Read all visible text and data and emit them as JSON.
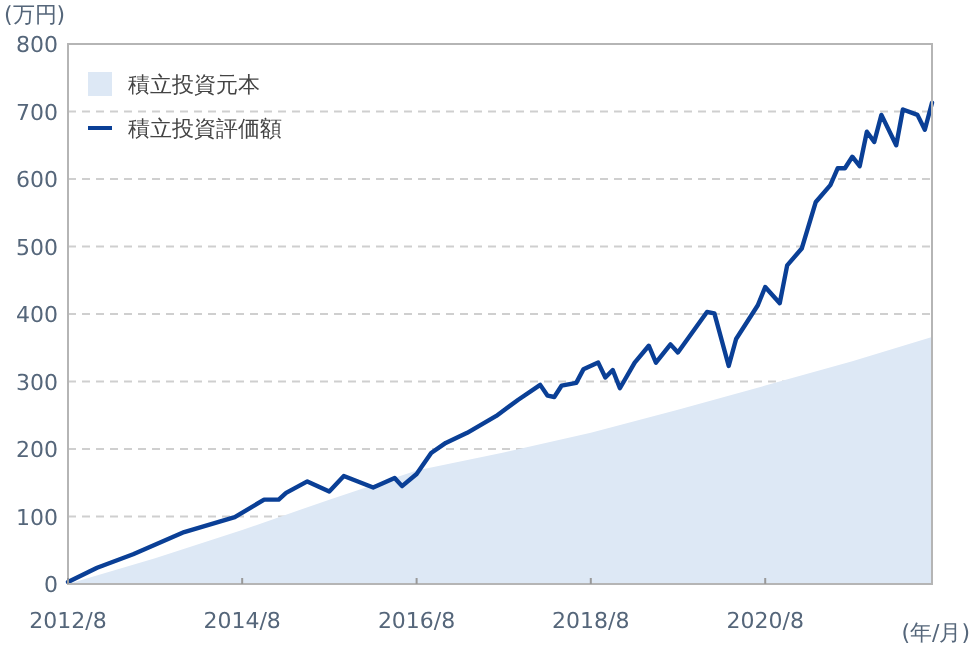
{
  "chart_data": {
    "type": "line",
    "ylabel": "(万円)",
    "xlabel": "(年/月)",
    "xlim": [
      "2012-08",
      "2022-07"
    ],
    "xticks": [
      {
        "value": "2012-08",
        "label": "2012/8"
      },
      {
        "value": "2014-08",
        "label": "2014/8"
      },
      {
        "value": "2016-08",
        "label": "2016/8"
      },
      {
        "value": "2018-08",
        "label": "2018/8"
      },
      {
        "value": "2020-08",
        "label": "2020/8"
      }
    ],
    "ylim": [
      0,
      800
    ],
    "yticks": [
      0,
      100,
      200,
      300,
      400,
      500,
      600,
      700,
      800
    ],
    "grid": "y",
    "legend": "top left",
    "series": [
      {
        "name": "積立投資元本",
        "type": "area",
        "color": "#dde8f5",
        "x": [
          "2012-08",
          "2013-08",
          "2014-08",
          "2015-08",
          "2016-08",
          "2017-08",
          "2018-08",
          "2019-08",
          "2020-08",
          "2021-08",
          "2022-07"
        ],
        "values": [
          0,
          38,
          80,
          125,
          168,
          195,
          224,
          258,
          294,
          330,
          366
        ]
      },
      {
        "name": "積立投資評価額",
        "color": "#0a3f96",
        "x": [
          "2012-08",
          "2012-12",
          "2013-05",
          "2013-12",
          "2014-07",
          "2014-11",
          "2015-01",
          "2015-02",
          "2015-05",
          "2015-08",
          "2015-10",
          "2016-02",
          "2016-05",
          "2016-06",
          "2016-08",
          "2016-10",
          "2016-12",
          "2017-03",
          "2017-07",
          "2017-10",
          "2018-01",
          "2018-02",
          "2018-03",
          "2018-04",
          "2018-06",
          "2018-07",
          "2018-09",
          "2018-10",
          "2018-11",
          "2018-12",
          "2019-02",
          "2019-04",
          "2019-05",
          "2019-07",
          "2019-08",
          "2019-12",
          "2020-01",
          "2020-03",
          "2020-04",
          "2020-07",
          "2020-08",
          "2020-10",
          "2020-11",
          "2021-01",
          "2021-03",
          "2021-05",
          "2021-06",
          "2021-07",
          "2021-08",
          "2021-09",
          "2021-10",
          "2021-11",
          "2021-12",
          "2022-02",
          "2022-03",
          "2022-05",
          "2022-06",
          "2022-07"
        ],
        "values": [
          3,
          24,
          44,
          77,
          99,
          125,
          125,
          135,
          152,
          137,
          160,
          143,
          157,
          145,
          163,
          194,
          209,
          224,
          249,
          273,
          295,
          279,
          277,
          294,
          298,
          318,
          328,
          306,
          317,
          290,
          328,
          353,
          328,
          355,
          343,
          403,
          401,
          323,
          363,
          413,
          440,
          416,
          472,
          497,
          566,
          591,
          616,
          616,
          633,
          619,
          670,
          655,
          695,
          650,
          703,
          695,
          673,
          713
        ]
      }
    ]
  }
}
